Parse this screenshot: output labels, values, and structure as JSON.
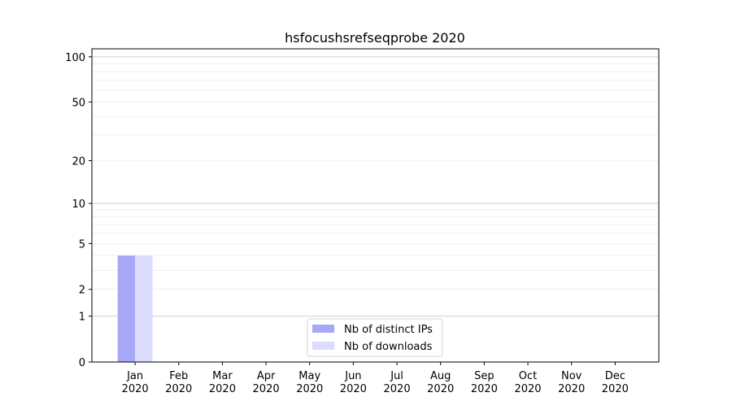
{
  "chart_data": {
    "type": "bar",
    "title": "hsfocushsrefseqprobe 2020",
    "xlabel": "",
    "ylabel": "",
    "y_scale": "symlog (log10(1+y))",
    "ylim": [
      0,
      113
    ],
    "y_ticks": [
      0,
      1,
      2,
      5,
      10,
      20,
      50,
      100
    ],
    "grid": true,
    "legend_position": "lower-center",
    "categories": [
      "Jan\n2020",
      "Feb\n2020",
      "Mar\n2020",
      "Apr\n2020",
      "May\n2020",
      "Jun\n2020",
      "Jul\n2020",
      "Aug\n2020",
      "Sep\n2020",
      "Oct\n2020",
      "Nov\n2020",
      "Dec\n2020"
    ],
    "series": [
      {
        "name": "Nb of distinct IPs",
        "color": "#a8a8f8",
        "values": [
          4,
          0,
          0,
          0,
          0,
          0,
          0,
          0,
          0,
          0,
          0,
          0
        ]
      },
      {
        "name": "Nb of downloads",
        "color": "#dcdcfc",
        "values": [
          4,
          0,
          0,
          0,
          0,
          0,
          0,
          0,
          0,
          0,
          0,
          0
        ]
      }
    ]
  }
}
